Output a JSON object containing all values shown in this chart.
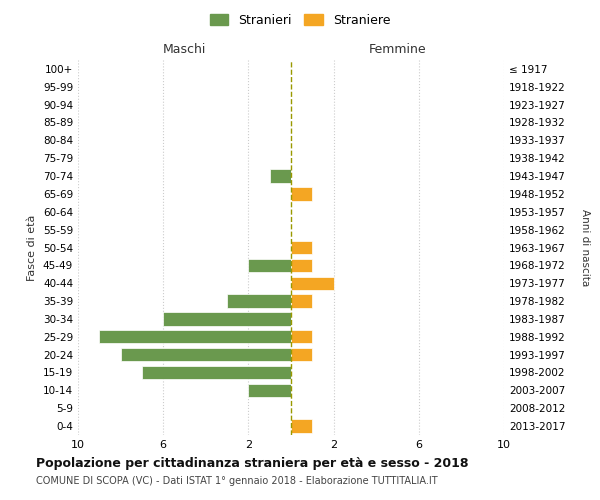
{
  "age_groups": [
    "100+",
    "95-99",
    "90-94",
    "85-89",
    "80-84",
    "75-79",
    "70-74",
    "65-69",
    "60-64",
    "55-59",
    "50-54",
    "45-49",
    "40-44",
    "35-39",
    "30-34",
    "25-29",
    "20-24",
    "15-19",
    "10-14",
    "5-9",
    "0-4"
  ],
  "birth_years": [
    "≤ 1917",
    "1918-1922",
    "1923-1927",
    "1928-1932",
    "1933-1937",
    "1938-1942",
    "1943-1947",
    "1948-1952",
    "1953-1957",
    "1958-1962",
    "1963-1967",
    "1968-1972",
    "1973-1977",
    "1978-1982",
    "1983-1987",
    "1988-1992",
    "1993-1997",
    "1998-2002",
    "2003-2007",
    "2008-2012",
    "2013-2017"
  ],
  "males": [
    0,
    0,
    0,
    0,
    0,
    0,
    1,
    0,
    0,
    0,
    0,
    2,
    0,
    3,
    6,
    9,
    8,
    7,
    2,
    0,
    0
  ],
  "females": [
    0,
    0,
    0,
    0,
    0,
    0,
    0,
    1,
    0,
    0,
    1,
    1,
    2,
    1,
    0,
    1,
    1,
    0,
    0,
    0,
    1
  ],
  "male_color": "#6a994e",
  "female_color": "#f4a623",
  "dashed_line_color": "#999900",
  "grid_color": "#cccccc",
  "title": "Popolazione per cittadinanza straniera per età e sesso - 2018",
  "subtitle": "COMUNE DI SCOPA (VC) - Dati ISTAT 1° gennaio 2018 - Elaborazione TUTTITALIA.IT",
  "xlabel_left": "Maschi",
  "xlabel_right": "Femmine",
  "ylabel": "Fasce di età",
  "ylabel_right": "Anni di nascita",
  "legend_male": "Stranieri",
  "legend_female": "Straniere",
  "xlim": 10,
  "background_color": "#ffffff"
}
